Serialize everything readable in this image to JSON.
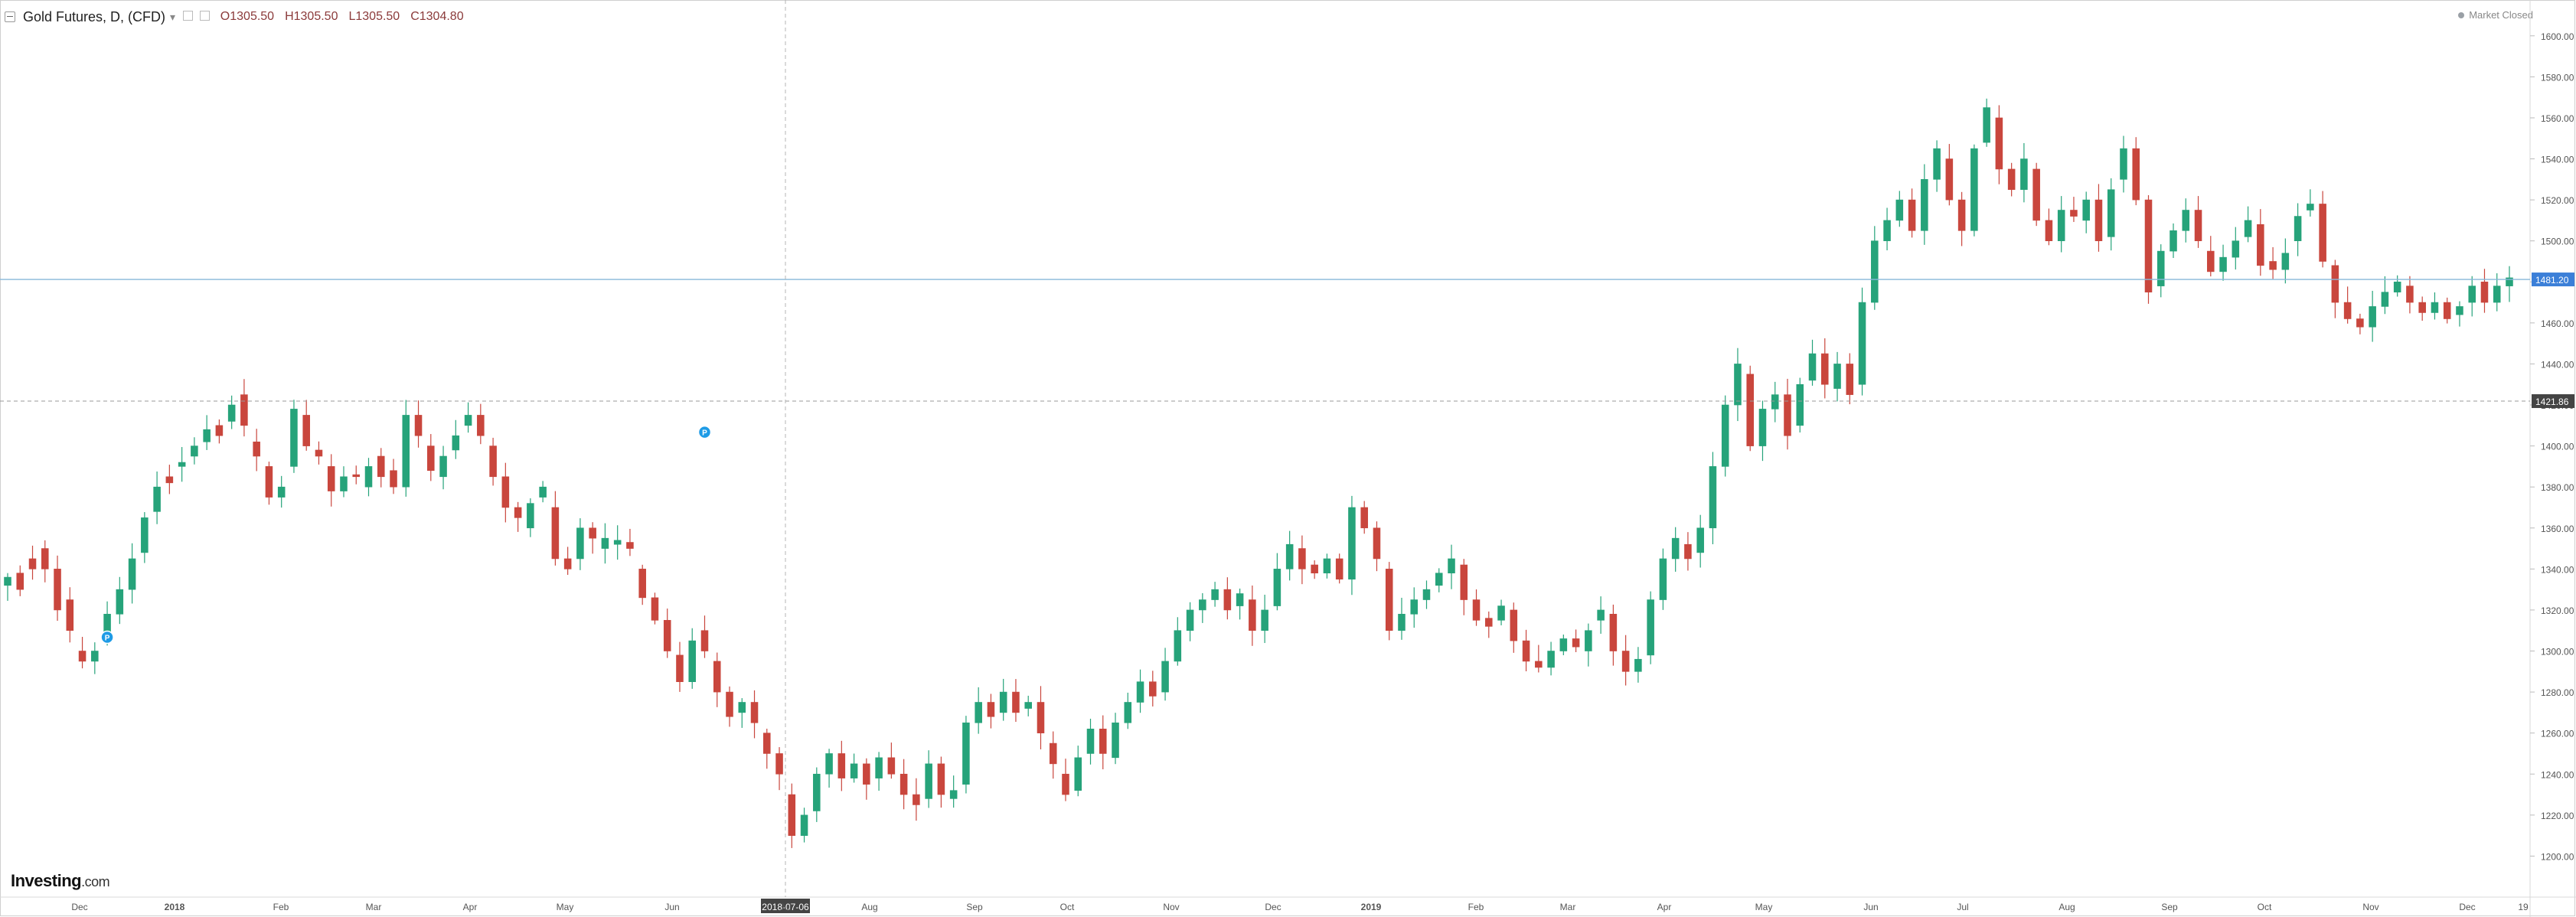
{
  "header": {
    "title": "Gold Futures, D, (CFD)",
    "caret": "▾",
    "ohlc": [
      {
        "key": "O",
        "value": "1305.50"
      },
      {
        "key": "H",
        "value": "1305.50"
      },
      {
        "key": "L",
        "value": "1305.50"
      },
      {
        "key": "C",
        "value": "1304.80"
      }
    ]
  },
  "market_status": "Market Closed",
  "logo": {
    "text": "Investing",
    "suffix": ".com"
  },
  "colors": {
    "up": "#26a37a",
    "down": "#c9463d",
    "price_line": "#87b7d9",
    "price_tag": "#3b7fd8",
    "crosshair_tag": "#444444",
    "grid_axis": "#d9d9d9"
  },
  "axis": {
    "y_ticks": [
      "1200.00",
      "1220.00",
      "1240.00",
      "1260.00",
      "1280.00",
      "1300.00",
      "1320.00",
      "1340.00",
      "1360.00",
      "1380.00",
      "1400.00",
      "1420.00",
      "1440.00",
      "1460.00",
      "1480.00",
      "1500.00",
      "1520.00",
      "1540.00",
      "1560.00",
      "1580.00",
      "1600.00"
    ],
    "y_range": [
      1180,
      1610
    ],
    "x_labels": [
      "Dec",
      "2018",
      "Feb",
      "Mar",
      "Apr",
      "May",
      "Jun",
      "Jul",
      "Aug",
      "Sep",
      "Oct",
      "Nov",
      "Dec",
      "2019",
      "Feb",
      "Mar",
      "Apr",
      "May",
      "Jun",
      "Jul",
      "Aug",
      "Sep",
      "Oct",
      "Nov",
      "Dec",
      "19"
    ],
    "x_label_bold": [
      "2018",
      "2019"
    ]
  },
  "current_price": {
    "value": 1481.2,
    "label": "1481.20"
  },
  "crosshair": {
    "price": 1421.86,
    "price_label": "1421.86",
    "date_label": "2018-07-06"
  },
  "events": [
    {
      "label": "P",
      "x_index": 8,
      "price": 1300
    },
    {
      "label": "P",
      "x_index": 56,
      "price": 1400
    }
  ],
  "chart_data": {
    "type": "candlestick",
    "x": "trading days, Nov 2017 – Dec 2019",
    "ylim": [
      1180,
      1610
    ],
    "anchors": [
      [
        1332,
        1336
      ],
      [
        1338,
        1330
      ],
      [
        1345,
        1340
      ],
      [
        1350,
        1340
      ],
      [
        1340,
        1320
      ],
      [
        1325,
        1310
      ],
      [
        1300,
        1295
      ],
      [
        1295,
        1300
      ],
      [
        1305,
        1318
      ],
      [
        1318,
        1330
      ],
      [
        1330,
        1345
      ],
      [
        1348,
        1365
      ],
      [
        1368,
        1380
      ],
      [
        1385,
        1382
      ],
      [
        1390,
        1392
      ],
      [
        1395,
        1400
      ],
      [
        1402,
        1408
      ],
      [
        1410,
        1405
      ],
      [
        1412,
        1420
      ],
      [
        1425,
        1410
      ],
      [
        1402,
        1395
      ],
      [
        1390,
        1375
      ],
      [
        1375,
        1380
      ],
      [
        1390,
        1418
      ],
      [
        1415,
        1400
      ],
      [
        1398,
        1395
      ],
      [
        1390,
        1378
      ],
      [
        1378,
        1385
      ],
      [
        1386,
        1385
      ],
      [
        1380,
        1390
      ],
      [
        1395,
        1385
      ],
      [
        1388,
        1380
      ],
      [
        1380,
        1415
      ],
      [
        1415,
        1405
      ],
      [
        1400,
        1388
      ],
      [
        1385,
        1395
      ],
      [
        1398,
        1405
      ],
      [
        1410,
        1415
      ],
      [
        1415,
        1405
      ],
      [
        1400,
        1385
      ],
      [
        1385,
        1370
      ],
      [
        1370,
        1365
      ],
      [
        1360,
        1372
      ],
      [
        1375,
        1380
      ],
      [
        1370,
        1345
      ],
      [
        1345,
        1340
      ],
      [
        1345,
        1360
      ],
      [
        1360,
        1355
      ],
      [
        1350,
        1355
      ],
      [
        1352,
        1354
      ],
      [
        1353,
        1350
      ],
      [
        1340,
        1326
      ],
      [
        1326,
        1315
      ],
      [
        1315,
        1300
      ],
      [
        1298,
        1285
      ],
      [
        1285,
        1305
      ],
      [
        1310,
        1300
      ],
      [
        1295,
        1280
      ],
      [
        1280,
        1268
      ],
      [
        1270,
        1275
      ],
      [
        1275,
        1265
      ],
      [
        1260,
        1250
      ],
      [
        1250,
        1240
      ],
      [
        1230,
        1210
      ],
      [
        1210,
        1220
      ],
      [
        1222,
        1240
      ],
      [
        1240,
        1250
      ],
      [
        1250,
        1238
      ],
      [
        1238,
        1245
      ],
      [
        1245,
        1235
      ],
      [
        1238,
        1248
      ],
      [
        1248,
        1240
      ],
      [
        1240,
        1230
      ],
      [
        1230,
        1225
      ],
      [
        1228,
        1245
      ],
      [
        1245,
        1230
      ],
      [
        1228,
        1232
      ],
      [
        1235,
        1265
      ],
      [
        1265,
        1275
      ],
      [
        1275,
        1268
      ],
      [
        1270,
        1280
      ],
      [
        1280,
        1270
      ],
      [
        1272,
        1275
      ],
      [
        1275,
        1260
      ],
      [
        1255,
        1245
      ],
      [
        1240,
        1230
      ],
      [
        1232,
        1248
      ],
      [
        1250,
        1262
      ],
      [
        1262,
        1250
      ],
      [
        1248,
        1265
      ],
      [
        1265,
        1275
      ],
      [
        1275,
        1285
      ],
      [
        1285,
        1278
      ],
      [
        1280,
        1295
      ],
      [
        1295,
        1310
      ],
      [
        1310,
        1320
      ],
      [
        1320,
        1325
      ],
      [
        1325,
        1330
      ],
      [
        1330,
        1320
      ],
      [
        1322,
        1328
      ],
      [
        1325,
        1310
      ],
      [
        1310,
        1320
      ],
      [
        1322,
        1340
      ],
      [
        1340,
        1352
      ],
      [
        1350,
        1340
      ],
      [
        1342,
        1338
      ],
      [
        1338,
        1345
      ],
      [
        1345,
        1335
      ],
      [
        1335,
        1370
      ],
      [
        1370,
        1360
      ],
      [
        1360,
        1345
      ],
      [
        1340,
        1310
      ],
      [
        1310,
        1318
      ],
      [
        1318,
        1325
      ],
      [
        1325,
        1330
      ],
      [
        1332,
        1338
      ],
      [
        1338,
        1345
      ],
      [
        1342,
        1325
      ],
      [
        1325,
        1315
      ],
      [
        1316,
        1312
      ],
      [
        1315,
        1322
      ],
      [
        1320,
        1305
      ],
      [
        1305,
        1295
      ],
      [
        1295,
        1292
      ],
      [
        1292,
        1300
      ],
      [
        1300,
        1306
      ],
      [
        1306,
        1302
      ],
      [
        1300,
        1310
      ],
      [
        1315,
        1320
      ],
      [
        1318,
        1300
      ],
      [
        1300,
        1290
      ],
      [
        1290,
        1296
      ],
      [
        1298,
        1325
      ],
      [
        1325,
        1345
      ],
      [
        1345,
        1355
      ],
      [
        1352,
        1345
      ],
      [
        1348,
        1360
      ],
      [
        1360,
        1390
      ],
      [
        1390,
        1420
      ],
      [
        1420,
        1440
      ],
      [
        1435,
        1400
      ],
      [
        1400,
        1418
      ],
      [
        1418,
        1425
      ],
      [
        1425,
        1405
      ],
      [
        1410,
        1430
      ],
      [
        1432,
        1445
      ],
      [
        1445,
        1430
      ],
      [
        1428,
        1440
      ],
      [
        1440,
        1425
      ],
      [
        1430,
        1470
      ],
      [
        1470,
        1500
      ],
      [
        1500,
        1510
      ],
      [
        1510,
        1520
      ],
      [
        1520,
        1505
      ],
      [
        1505,
        1530
      ],
      [
        1530,
        1545
      ],
      [
        1540,
        1520
      ],
      [
        1520,
        1505
      ],
      [
        1505,
        1545
      ],
      [
        1548,
        1565
      ],
      [
        1560,
        1535
      ],
      [
        1535,
        1525
      ],
      [
        1525,
        1540
      ],
      [
        1535,
        1510
      ],
      [
        1510,
        1500
      ],
      [
        1500,
        1515
      ],
      [
        1515,
        1512
      ],
      [
        1510,
        1520
      ],
      [
        1520,
        1500
      ],
      [
        1502,
        1525
      ],
      [
        1530,
        1545
      ],
      [
        1545,
        1520
      ],
      [
        1520,
        1475
      ],
      [
        1478,
        1495
      ],
      [
        1495,
        1505
      ],
      [
        1505,
        1515
      ],
      [
        1515,
        1500
      ],
      [
        1495,
        1485
      ],
      [
        1485,
        1492
      ],
      [
        1492,
        1500
      ],
      [
        1502,
        1510
      ],
      [
        1508,
        1488
      ],
      [
        1490,
        1486
      ],
      [
        1486,
        1494
      ],
      [
        1500,
        1512
      ],
      [
        1515,
        1518
      ],
      [
        1518,
        1490
      ],
      [
        1488,
        1470
      ],
      [
        1470,
        1462
      ],
      [
        1462,
        1458
      ],
      [
        1458,
        1468
      ],
      [
        1468,
        1475
      ],
      [
        1475,
        1480
      ],
      [
        1478,
        1470
      ],
      [
        1470,
        1465
      ],
      [
        1465,
        1470
      ],
      [
        1470,
        1462
      ],
      [
        1464,
        1468
      ],
      [
        1470,
        1478
      ],
      [
        1480,
        1470
      ],
      [
        1470,
        1478
      ],
      [
        1478,
        1482
      ]
    ],
    "xlabel": "",
    "ylabel": ""
  }
}
